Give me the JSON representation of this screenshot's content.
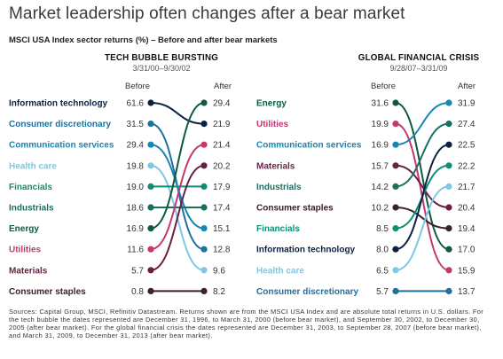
{
  "header": {
    "title": "Market leadership often changes after a bear market",
    "subtitle": "MSCI USA Index sector returns (%) – Before and after bear markets"
  },
  "colors": {
    "Information technology": "#0b2240",
    "Consumer discretionary": "#1f6f9f",
    "Communication services": "#1587b5",
    "Health care": "#7cc8e6",
    "Financials": "#0e8f72",
    "Industrials": "#1a7060",
    "Energy": "#0d5a3c",
    "Utilities": "#c2386f",
    "Materials": "#6a1f45",
    "Consumer staples": "#3c2030"
  },
  "chart_data": [
    {
      "type": "slope",
      "title": "TECH BUBBLE BURSTING",
      "dates": "3/31/00–9/30/02",
      "before_label": "Before",
      "after_label": "After",
      "before": [
        {
          "sector": "Information technology",
          "value": "61.6"
        },
        {
          "sector": "Consumer discretionary",
          "value": "31.5"
        },
        {
          "sector": "Communication services",
          "value": "29.4"
        },
        {
          "sector": "Health care",
          "value": "19.8"
        },
        {
          "sector": "Financials",
          "value": "19.0"
        },
        {
          "sector": "Industrials",
          "value": "18.6"
        },
        {
          "sector": "Energy",
          "value": "16.9"
        },
        {
          "sector": "Utilities",
          "value": "11.6"
        },
        {
          "sector": "Materials",
          "value": "5.7"
        },
        {
          "sector": "Consumer staples",
          "value": "0.8"
        }
      ],
      "after": [
        {
          "sector": "Energy",
          "value": "29.4"
        },
        {
          "sector": "Information technology",
          "value": "21.9"
        },
        {
          "sector": "Utilities",
          "value": "21.4"
        },
        {
          "sector": "Materials",
          "value": "20.2"
        },
        {
          "sector": "Financials",
          "value": "17.9"
        },
        {
          "sector": "Industrials",
          "value": "17.4"
        },
        {
          "sector": "Communication services",
          "value": "15.1"
        },
        {
          "sector": "Consumer discretionary",
          "value": "12.8"
        },
        {
          "sector": "Health care",
          "value": "9.6"
        },
        {
          "sector": "Consumer staples",
          "value": "8.2"
        }
      ]
    },
    {
      "type": "slope",
      "title": "GLOBAL FINANCIAL CRISIS",
      "dates": "9/28/07–3/31/09",
      "before_label": "Before",
      "after_label": "After",
      "before": [
        {
          "sector": "Energy",
          "value": "31.6"
        },
        {
          "sector": "Utilities",
          "value": "19.9"
        },
        {
          "sector": "Communication services",
          "value": "16.9"
        },
        {
          "sector": "Materials",
          "value": "15.7"
        },
        {
          "sector": "Industrials",
          "value": "14.2"
        },
        {
          "sector": "Consumer staples",
          "value": "10.2"
        },
        {
          "sector": "Financials",
          "value": "8.5"
        },
        {
          "sector": "Information technology",
          "value": "8.0"
        },
        {
          "sector": "Health care",
          "value": "6.5"
        },
        {
          "sector": "Consumer discretionary",
          "value": "5.7"
        }
      ],
      "after": [
        {
          "sector": "Communication services",
          "value": "31.9"
        },
        {
          "sector": "Industrials",
          "value": "27.4"
        },
        {
          "sector": "Information technology",
          "value": "22.5"
        },
        {
          "sector": "Financials",
          "value": "22.2"
        },
        {
          "sector": "Health care",
          "value": "21.7"
        },
        {
          "sector": "Materials",
          "value": "20.4"
        },
        {
          "sector": "Consumer staples",
          "value": "19.4"
        },
        {
          "sector": "Energy",
          "value": "17.0"
        },
        {
          "sector": "Utilities",
          "value": "15.9"
        },
        {
          "sector": "Consumer discretionary",
          "value": "13.7"
        }
      ]
    }
  ],
  "footer": {
    "source": "Sources: Capital Group, MSCI, Refinitiv Datastream. Returns shown are from the MSCI USA Index and are absolute total returns in U.S. dollars. For the tech bubble the dates represented are December 31, 1996, to March 31, 2000 (before bear market), and September 30, 2002, to December 30, 2005 (after bear market). For the global financial crisis the dates represented are December 31, 2003, to September 28, 2007 (before bear market), and March 31, 2009, to December 31, 2013 (after bear market)."
  }
}
